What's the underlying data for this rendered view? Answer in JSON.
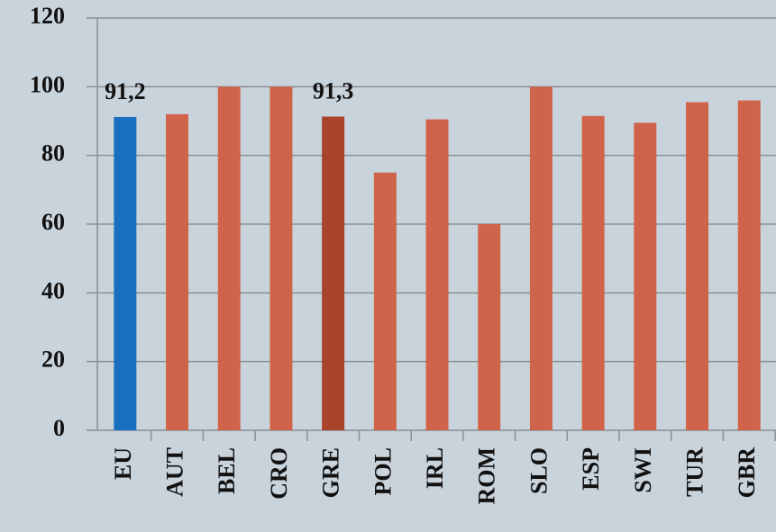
{
  "chart_data": {
    "type": "bar",
    "categories": [
      "EU",
      "AUT",
      "BEL",
      "CRO",
      "GRE",
      "POL",
      "IRL",
      "ROM",
      "SLO",
      "ESP",
      "SWI",
      "TUR",
      "GBR"
    ],
    "values": [
      91.2,
      92,
      100,
      100,
      91.3,
      75,
      90.5,
      60,
      100,
      91.5,
      89.5,
      95.5,
      96
    ],
    "value_labels": [
      "91,2",
      null,
      null,
      null,
      "91,3",
      null,
      null,
      null,
      null,
      null,
      null,
      null,
      null
    ],
    "colors": [
      "#1b6fc0",
      "#d0644a",
      "#d0644a",
      "#d0644a",
      "#a8432c",
      "#d0644a",
      "#d0644a",
      "#d0644a",
      "#d0644a",
      "#d0644a",
      "#d0644a",
      "#d0644a",
      "#d0644a"
    ],
    "ylim": [
      0,
      120
    ],
    "yticks": [
      0,
      20,
      40,
      60,
      80,
      100,
      120
    ],
    "grid": true
  }
}
